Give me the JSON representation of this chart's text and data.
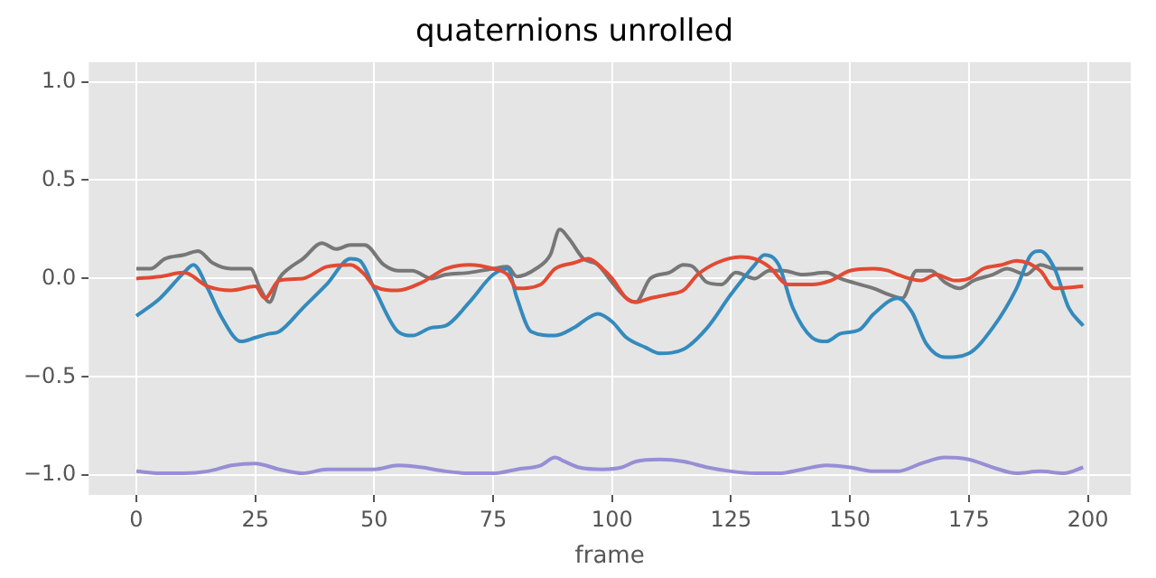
{
  "chart_data": {
    "type": "line",
    "title": "quaternions unrolled",
    "xlabel": "frame",
    "xlim": [
      -10,
      209
    ],
    "ylim": [
      -1.1,
      1.1
    ],
    "xticks": [
      0,
      25,
      50,
      75,
      100,
      125,
      150,
      175,
      200
    ],
    "yticks": [
      {
        "value": -1,
        "label": "−1.0"
      },
      {
        "value": -0.5,
        "label": "−0.5"
      },
      {
        "value": 0,
        "label": "0.0"
      },
      {
        "value": 0.5,
        "label": "0.5"
      },
      {
        "value": 1,
        "label": "1.0"
      }
    ],
    "grid": true,
    "legend": false,
    "marker": "none",
    "line_style": "solid",
    "series": [
      {
        "color": "#e24a33",
        "x": [
          0,
          5,
          10,
          15,
          20,
          25,
          27,
          30,
          35,
          40,
          45,
          48,
          50,
          55,
          60,
          65,
          70,
          75,
          78,
          80,
          85,
          88,
          92,
          95,
          98,
          100,
          103,
          105,
          108,
          112,
          115,
          118,
          122,
          127,
          130,
          133,
          137,
          142,
          146,
          150,
          155,
          158,
          160,
          165,
          168,
          172,
          175,
          178,
          182,
          185,
          190,
          193,
          199
        ],
        "values": [
          0.0,
          0.01,
          0.03,
          -0.04,
          -0.06,
          -0.04,
          -0.1,
          -0.01,
          0.0,
          0.06,
          0.07,
          0.02,
          -0.04,
          -0.06,
          -0.02,
          0.05,
          0.07,
          0.05,
          0.02,
          -0.05,
          -0.03,
          0.05,
          0.08,
          0.1,
          0.05,
          0.0,
          -0.1,
          -0.12,
          -0.1,
          -0.08,
          -0.06,
          0.02,
          0.08,
          0.11,
          0.1,
          0.06,
          -0.03,
          -0.03,
          -0.01,
          0.04,
          0.05,
          0.04,
          0.02,
          -0.01,
          0.02,
          -0.01,
          0.0,
          0.05,
          0.07,
          0.09,
          0.04,
          -0.05,
          -0.04
        ]
      },
      {
        "color": "#348abd",
        "x": [
          0,
          5,
          10,
          12,
          15,
          18,
          22,
          25,
          28,
          30,
          35,
          40,
          45,
          47,
          50,
          55,
          58,
          62,
          65,
          70,
          75,
          78,
          80,
          83,
          88,
          92,
          95,
          97,
          100,
          103,
          107,
          110,
          115,
          120,
          125,
          130,
          132,
          135,
          138,
          142,
          145,
          148,
          152,
          155,
          160,
          163,
          166,
          170,
          175,
          180,
          185,
          188,
          190,
          193,
          196,
          199
        ],
        "values": [
          -0.19,
          -0.1,
          0.03,
          0.07,
          -0.05,
          -0.2,
          -0.32,
          -0.3,
          -0.28,
          -0.27,
          -0.15,
          -0.03,
          0.1,
          0.09,
          -0.05,
          -0.27,
          -0.29,
          -0.25,
          -0.24,
          -0.12,
          0.02,
          0.05,
          -0.1,
          -0.27,
          -0.29,
          -0.25,
          -0.2,
          -0.18,
          -0.22,
          -0.3,
          -0.35,
          -0.38,
          -0.36,
          -0.25,
          -0.08,
          0.07,
          0.12,
          0.07,
          -0.15,
          -0.3,
          -0.32,
          -0.28,
          -0.26,
          -0.18,
          -0.1,
          -0.17,
          -0.33,
          -0.4,
          -0.38,
          -0.25,
          -0.05,
          0.12,
          0.14,
          0.05,
          -0.15,
          -0.24
        ]
      },
      {
        "color": "#988ed5",
        "x": [
          0,
          5,
          10,
          15,
          20,
          25,
          30,
          35,
          40,
          45,
          50,
          55,
          60,
          65,
          70,
          75,
          80,
          85,
          88,
          90,
          93,
          98,
          102,
          105,
          110,
          115,
          120,
          125,
          130,
          135,
          140,
          145,
          150,
          155,
          160,
          165,
          170,
          175,
          180,
          185,
          190,
          195,
          199
        ],
        "values": [
          -0.98,
          -0.99,
          -0.99,
          -0.98,
          -0.95,
          -0.94,
          -0.97,
          -0.99,
          -0.97,
          -0.97,
          -0.97,
          -0.95,
          -0.96,
          -0.98,
          -0.99,
          -0.99,
          -0.97,
          -0.95,
          -0.91,
          -0.93,
          -0.96,
          -0.97,
          -0.96,
          -0.93,
          -0.92,
          -0.93,
          -0.96,
          -0.98,
          -0.99,
          -0.99,
          -0.97,
          -0.95,
          -0.96,
          -0.98,
          -0.98,
          -0.94,
          -0.91,
          -0.92,
          -0.96,
          -0.99,
          -0.98,
          -0.99,
          -0.96
        ]
      },
      {
        "color": "#777777",
        "x": [
          0,
          3,
          6,
          10,
          13,
          16,
          20,
          24,
          26,
          28,
          30,
          32,
          35,
          39,
          42,
          45,
          48,
          52,
          55,
          58,
          62,
          65,
          70,
          75,
          78,
          80,
          84,
          87,
          89,
          91,
          94,
          97,
          100,
          103,
          105,
          108,
          112,
          115,
          117,
          120,
          123,
          126,
          130,
          133,
          136,
          140,
          145,
          148,
          152,
          155,
          158,
          161,
          164,
          167,
          170,
          173,
          176,
          180,
          183,
          187,
          190,
          193,
          199
        ],
        "values": [
          0.05,
          0.05,
          0.1,
          0.12,
          0.14,
          0.08,
          0.05,
          0.05,
          -0.05,
          -0.12,
          0.0,
          0.05,
          0.1,
          0.18,
          0.15,
          0.17,
          0.17,
          0.07,
          0.04,
          0.04,
          0.0,
          0.02,
          0.03,
          0.05,
          0.06,
          0.01,
          0.05,
          0.12,
          0.25,
          0.2,
          0.1,
          0.07,
          -0.02,
          -0.1,
          -0.12,
          0.0,
          0.03,
          0.07,
          0.06,
          -0.02,
          -0.03,
          0.03,
          0.0,
          0.04,
          0.04,
          0.02,
          0.03,
          0.0,
          -0.03,
          -0.05,
          -0.08,
          -0.1,
          0.04,
          0.04,
          -0.02,
          -0.05,
          -0.01,
          0.02,
          0.05,
          0.02,
          0.07,
          0.05,
          0.05
        ]
      }
    ]
  }
}
